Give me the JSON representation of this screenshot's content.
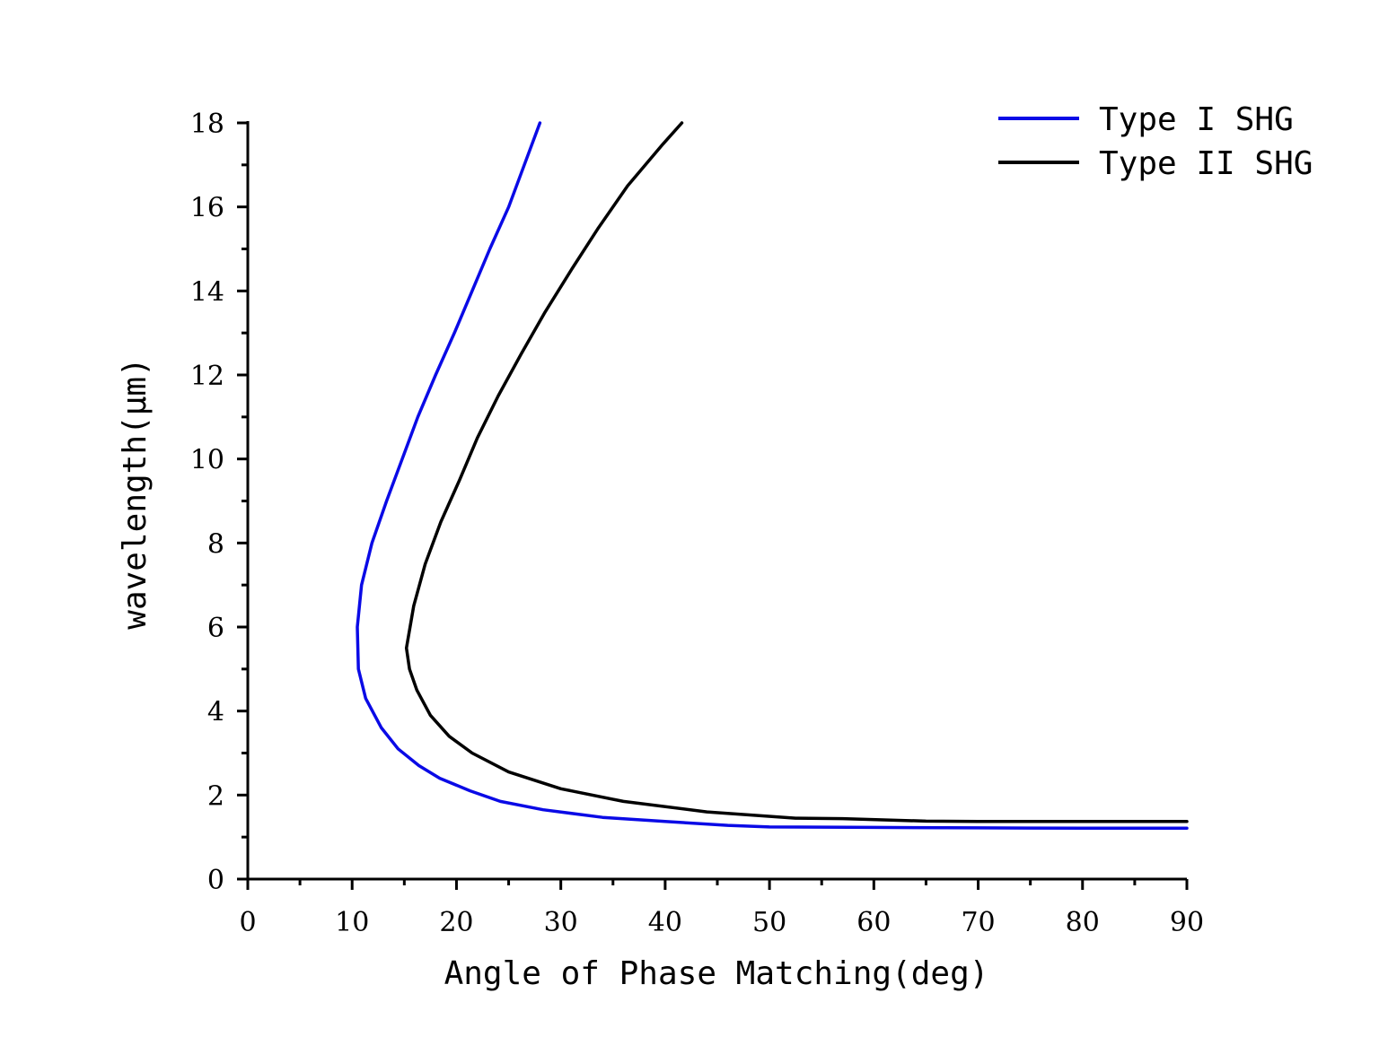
{
  "chart_data": {
    "type": "line",
    "title": "",
    "xlabel": "Angle of Phase Matching(deg)",
    "ylabel": "wavelength(μm)",
    "xlim": [
      0,
      90
    ],
    "ylim": [
      0,
      18
    ],
    "x_ticks": [
      0,
      10,
      20,
      30,
      40,
      50,
      60,
      70,
      80,
      90
    ],
    "y_ticks": [
      0,
      2,
      4,
      6,
      8,
      10,
      12,
      14,
      16,
      18
    ],
    "x_tick_labels": [
      "0",
      "10",
      "20",
      "30",
      "40",
      "50",
      "60",
      "70",
      "80",
      "90"
    ],
    "y_tick_labels": [
      "0",
      "2",
      "4",
      "6",
      "8",
      "10",
      "12",
      "14",
      "16",
      "18"
    ],
    "grid": false,
    "legend_position": "top-right",
    "series": [
      {
        "name": "Type I SHG",
        "color": "#0a0ae6",
        "points": [
          [
            28.0,
            18.0
          ],
          [
            26.5,
            17.0
          ],
          [
            25.0,
            16.0
          ],
          [
            23.2,
            15.0
          ],
          [
            21.5,
            14.0
          ],
          [
            19.8,
            13.0
          ],
          [
            18.0,
            12.0
          ],
          [
            16.3,
            11.0
          ],
          [
            14.8,
            10.0
          ],
          [
            13.3,
            9.0
          ],
          [
            11.9,
            8.0
          ],
          [
            10.9,
            7.0
          ],
          [
            10.5,
            6.0
          ],
          [
            10.6,
            5.0
          ],
          [
            11.3,
            4.3
          ],
          [
            12.8,
            3.6
          ],
          [
            14.4,
            3.1
          ],
          [
            16.4,
            2.7
          ],
          [
            18.4,
            2.4
          ],
          [
            21.3,
            2.1
          ],
          [
            24.2,
            1.85
          ],
          [
            28.3,
            1.65
          ],
          [
            34.0,
            1.47
          ],
          [
            40.0,
            1.37
          ],
          [
            46.0,
            1.28
          ],
          [
            50.0,
            1.24
          ],
          [
            60.0,
            1.23
          ],
          [
            70.0,
            1.22
          ],
          [
            80.0,
            1.21
          ],
          [
            90.0,
            1.21
          ]
        ]
      },
      {
        "name": "Type II SHG",
        "color": "#000000",
        "points": [
          [
            41.6,
            18.0
          ],
          [
            39.8,
            17.5
          ],
          [
            36.4,
            16.5
          ],
          [
            33.6,
            15.5
          ],
          [
            31.0,
            14.5
          ],
          [
            28.5,
            13.5
          ],
          [
            26.2,
            12.5
          ],
          [
            24.0,
            11.5
          ],
          [
            22.0,
            10.5
          ],
          [
            20.3,
            9.5
          ],
          [
            18.5,
            8.5
          ],
          [
            17.0,
            7.5
          ],
          [
            15.9,
            6.5
          ],
          [
            15.2,
            5.5
          ],
          [
            15.5,
            5.0
          ],
          [
            16.2,
            4.5
          ],
          [
            17.5,
            3.9
          ],
          [
            19.3,
            3.4
          ],
          [
            21.5,
            3.0
          ],
          [
            25.0,
            2.55
          ],
          [
            30.0,
            2.15
          ],
          [
            36.0,
            1.85
          ],
          [
            44.0,
            1.6
          ],
          [
            52.5,
            1.45
          ],
          [
            57.0,
            1.44
          ],
          [
            65.0,
            1.38
          ],
          [
            70.0,
            1.37
          ],
          [
            80.0,
            1.37
          ],
          [
            90.0,
            1.37
          ]
        ]
      }
    ]
  }
}
